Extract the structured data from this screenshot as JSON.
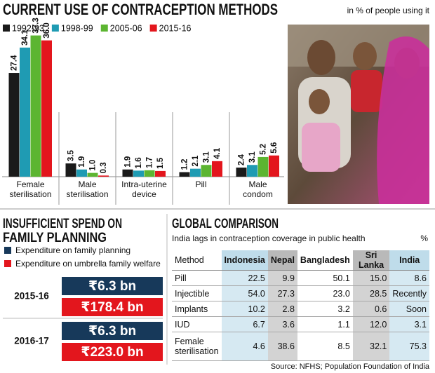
{
  "chart_data": {
    "type": "bar",
    "title": "CURRENT USE OF CONTRACEPTION METHODS",
    "subtitle": "in % of people using it",
    "categories": [
      "Female sterilisation",
      "Male sterilisation",
      "Intra-uterine device",
      "Pill",
      "Male condom"
    ],
    "series": [
      {
        "name": "1992-93",
        "color": "#1a1a1a",
        "values": [
          27.4,
          3.5,
          1.9,
          1.2,
          2.4
        ]
      },
      {
        "name": "1998-99",
        "color": "#1f9bb3",
        "values": [
          34.1,
          1.9,
          1.6,
          2.1,
          3.1
        ]
      },
      {
        "name": "2005-06",
        "color": "#5cb531",
        "values": [
          37.3,
          1.0,
          1.7,
          3.1,
          5.2
        ],
        "value_labels": [
          "37.3",
          "1.0",
          "1.7",
          "3.1",
          "5.2"
        ]
      },
      {
        "name": "2015-16",
        "color": "#e3161d",
        "values": [
          36.0,
          0.3,
          1.5,
          4.1,
          5.6
        ],
        "value_labels": [
          "36.0",
          "0.3",
          "1.5",
          "4.1",
          "5.6"
        ]
      }
    ]
  },
  "spend": {
    "title_lines": [
      "INSUFFICIENT SPEND ON",
      "FAMILY PLANNING"
    ],
    "legend": [
      {
        "label": "Expenditure on family planning",
        "color": "#17395a"
      },
      {
        "label": "Expenditure on umbrella family welfare",
        "color": "#e3161d"
      }
    ],
    "rows": [
      {
        "year": "2015-16",
        "family_planning": "₹6.3 bn",
        "umbrella": "₹178.4 bn"
      },
      {
        "year": "2016-17",
        "family_planning": "₹6.3 bn",
        "umbrella": "₹223.0 bn"
      }
    ]
  },
  "comparison": {
    "title": "GLOBAL COMPARISON",
    "subtitle": "India lags in contraception coverage in public health",
    "unit": "%",
    "columns": [
      "Method",
      "Indonesia",
      "Nepal",
      "Bangladesh",
      "Sri Lanka",
      "India"
    ],
    "rows": [
      [
        "Pill",
        "22.5",
        "9.9",
        "50.1",
        "15.0",
        "8.6"
      ],
      [
        "Injectible",
        "54.0",
        "27.3",
        "23.0",
        "28.5",
        "Recently"
      ],
      [
        "Implants",
        "10.2",
        "2.8",
        "3.2",
        "0.6",
        "Soon"
      ],
      [
        "IUD",
        "6.7",
        "3.6",
        "1.1",
        "12.0",
        "3.1"
      ],
      [
        "Female sterilisation",
        "4.6",
        "38.6",
        "8.5",
        "32.1",
        "75.3"
      ]
    ]
  },
  "source": "Source: NFHS; Population Foundation of India"
}
